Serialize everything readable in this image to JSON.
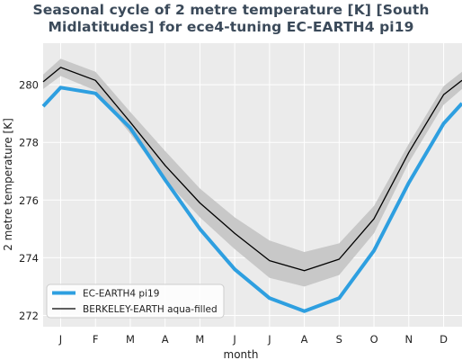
{
  "chart_data": {
    "type": "line",
    "title_line1": "Seasonal cycle of 2 metre temperature [K] [South",
    "title_line2": "Midlatitudes] for ece4-tuning EC-EARTH4 pi19",
    "xlabel": "month",
    "ylabel": "2 metre temperature [K]",
    "categories": [
      "J",
      "F",
      "M",
      "A",
      "M",
      "J",
      "J",
      "A",
      "S",
      "O",
      "N",
      "D"
    ],
    "yticks": [
      "272",
      "274",
      "276",
      "278",
      "280"
    ],
    "ylim": [
      271.7,
      280.9
    ],
    "grid": true,
    "legend_position": "lower-left",
    "series": [
      {
        "name": "EC-EARTH4 pi19",
        "color": "#2e9fe0",
        "values": [
          279.9,
          279.7,
          278.5,
          276.7,
          275.0,
          273.6,
          272.6,
          272.15,
          272.6,
          274.25,
          276.6,
          278.65
        ],
        "edge_values": [
          279.25,
          279.35
        ]
      },
      {
        "name": "BERKELEY-EARTH aqua-filled",
        "color": "#000000",
        "values": [
          280.6,
          280.15,
          278.7,
          277.2,
          275.9,
          274.85,
          273.9,
          273.55,
          273.95,
          275.35,
          277.65,
          279.65
        ],
        "edge_values": [
          280.1,
          280.15
        ],
        "band_upper": [
          280.9,
          280.45,
          279.05,
          277.7,
          276.4,
          275.4,
          274.6,
          274.2,
          274.5,
          275.8,
          277.95,
          279.95
        ],
        "band_lower": [
          280.3,
          279.8,
          278.3,
          276.7,
          275.4,
          274.3,
          273.3,
          273.0,
          273.4,
          274.85,
          277.3,
          279.3
        ],
        "band_edge_upper": [
          280.35,
          280.45
        ],
        "band_edge_lower": [
          279.85,
          279.85
        ]
      }
    ]
  }
}
